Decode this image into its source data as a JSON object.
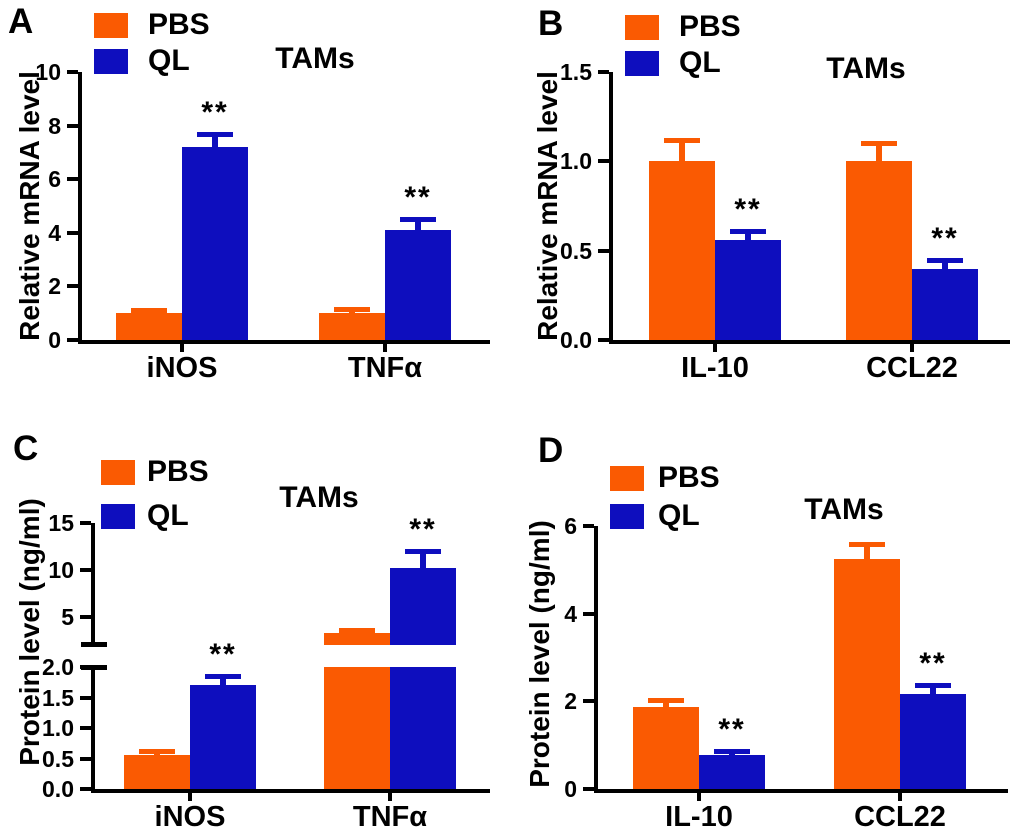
{
  "figure": {
    "background": "#FFFFFF",
    "series_colors": {
      "PBS": "#FA5A02",
      "QL": "#0E0EBE"
    },
    "panel_labels": [
      "A",
      "B",
      "C",
      "D"
    ]
  },
  "chart_data": [
    {
      "type": "bar",
      "panel_label": "A",
      "title": "TAMs",
      "ylabel": "Relative mRNA level",
      "xlabel": "",
      "categories": [
        "iNOS",
        "TNFα"
      ],
      "series": [
        {
          "name": "PBS",
          "color": "#FA5A02",
          "values": [
            1.0,
            1.0
          ],
          "errors": [
            0.13,
            0.15
          ]
        },
        {
          "name": "QL",
          "color": "#0E0EBE",
          "values": [
            7.2,
            4.1
          ],
          "errors": [
            0.5,
            0.4
          ]
        }
      ],
      "significance": {
        "series": "QL",
        "labels": [
          "**",
          "**"
        ]
      },
      "yaxis": {
        "break": false,
        "segments": [
          {
            "ylim": [
              0,
              10
            ],
            "ticks": [
              0,
              2,
              4,
              6,
              8,
              10
            ],
            "tick_labels": [
              "0",
              "2",
              "4",
              "6",
              "8",
              "10"
            ]
          }
        ]
      },
      "legend_position": "upper-left",
      "grid": false
    },
    {
      "type": "bar",
      "panel_label": "B",
      "title": "TAMs",
      "ylabel": "Relative mRNA level",
      "xlabel": "",
      "categories": [
        "IL-10",
        "CCL22"
      ],
      "series": [
        {
          "name": "PBS",
          "color": "#FA5A02",
          "values": [
            1.0,
            1.0
          ],
          "errors": [
            0.12,
            0.1
          ]
        },
        {
          "name": "QL",
          "color": "#0E0EBE",
          "values": [
            0.56,
            0.4
          ],
          "errors": [
            0.05,
            0.05
          ]
        }
      ],
      "significance": {
        "series": "QL",
        "labels": [
          "**",
          "**"
        ]
      },
      "yaxis": {
        "break": false,
        "segments": [
          {
            "ylim": [
              0,
              1.5
            ],
            "ticks": [
              0,
              0.5,
              1,
              1.5
            ],
            "tick_labels": [
              "0.0",
              "0.5",
              "1.0",
              "1.5"
            ]
          }
        ]
      },
      "legend_position": "upper-left",
      "grid": false
    },
    {
      "type": "bar",
      "panel_label": "C",
      "title": "TAMs",
      "ylabel": "Protein level (ng/ml)",
      "xlabel": "",
      "categories": [
        "iNOS",
        "TNFα"
      ],
      "series": [
        {
          "name": "PBS",
          "color": "#FA5A02",
          "values": [
            0.55,
            3.3
          ],
          "errors": [
            0.08,
            0.35
          ]
        },
        {
          "name": "QL",
          "color": "#0E0EBE",
          "values": [
            1.7,
            10.2
          ],
          "errors": [
            0.15,
            1.8
          ]
        }
      ],
      "significance": {
        "series": "QL",
        "labels": [
          "**",
          "**"
        ]
      },
      "yaxis": {
        "break": true,
        "segments": [
          {
            "ylim": [
              0,
              2
            ],
            "ticks": [
              0,
              0.5,
              1,
              1.5,
              2
            ],
            "tick_labels": [
              "0.0",
              "0.5",
              "1.0",
              "1.5",
              "2.0"
            ]
          },
          {
            "ylim": [
              2,
              15
            ],
            "ticks": [
              5,
              10,
              15
            ],
            "tick_labels": [
              "5",
              "10",
              "15"
            ]
          }
        ]
      },
      "legend_position": "upper-left",
      "grid": false
    },
    {
      "type": "bar",
      "panel_label": "D",
      "title": "TAMs",
      "ylabel": "Protein level (ng/ml)",
      "xlabel": "",
      "categories": [
        "IL-10",
        "CCL22"
      ],
      "series": [
        {
          "name": "PBS",
          "color": "#FA5A02",
          "values": [
            1.87,
            5.25
          ],
          "errors": [
            0.15,
            0.35
          ]
        },
        {
          "name": "QL",
          "color": "#0E0EBE",
          "values": [
            0.78,
            2.17
          ],
          "errors": [
            0.08,
            0.2
          ]
        }
      ],
      "significance": {
        "series": "QL",
        "labels": [
          "**",
          "**"
        ]
      },
      "yaxis": {
        "break": false,
        "segments": [
          {
            "ylim": [
              0,
              6
            ],
            "ticks": [
              0,
              2,
              4,
              6
            ],
            "tick_labels": [
              "0",
              "2",
              "4",
              "6"
            ]
          }
        ]
      },
      "legend_position": "upper-left",
      "grid": false
    }
  ]
}
